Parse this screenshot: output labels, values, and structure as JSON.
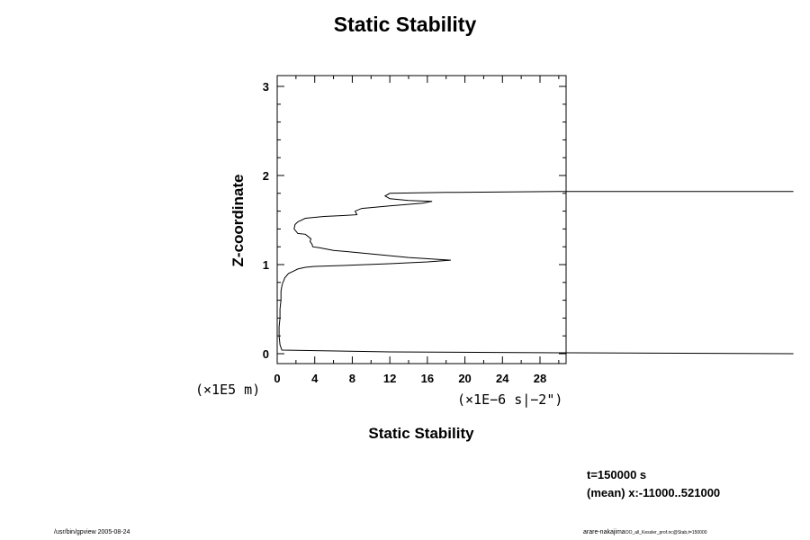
{
  "chart_data": {
    "type": "line",
    "title": "Static Stability",
    "xlabel": "Static Stability",
    "ylabel": "Z-coordinate",
    "x_unit": "(×1E−6 s|−2\")",
    "y_unit": "(×1E5 m)",
    "xlim": [
      0,
      30
    ],
    "ylim": [
      -0.1,
      3.1
    ],
    "x_ticks": [
      0,
      4,
      8,
      12,
      16,
      20,
      24,
      28
    ],
    "y_ticks": [
      0,
      1,
      2,
      3
    ],
    "grid": false,
    "series": [
      {
        "x": [
          55,
          30,
          12,
          0.5,
          0.3,
          0.2,
          0.2,
          0.3,
          0.3,
          0.4,
          0.4,
          0.5,
          0.6,
          0.7,
          0.8,
          1.2,
          1.8,
          2.2,
          3,
          4,
          7,
          12,
          16,
          18.5,
          14,
          10,
          6,
          4.5,
          3.8,
          3.7,
          3.5,
          3.6,
          3.0,
          2.2,
          1.8,
          1.9,
          2.2,
          3,
          5,
          7,
          8.5,
          8.3,
          9,
          12,
          15.5,
          16.5,
          14,
          12,
          11.5,
          12,
          18,
          30,
          55
        ],
        "y": [
          0.0,
          0.01,
          0.02,
          0.04,
          0.1,
          0.2,
          0.3,
          0.4,
          0.5,
          0.6,
          0.7,
          0.76,
          0.8,
          0.82,
          0.85,
          0.9,
          0.93,
          0.95,
          0.97,
          0.98,
          0.99,
          1.01,
          1.03,
          1.05,
          1.08,
          1.12,
          1.16,
          1.19,
          1.2,
          1.23,
          1.26,
          1.29,
          1.34,
          1.35,
          1.4,
          1.45,
          1.48,
          1.52,
          1.54,
          1.55,
          1.56,
          1.6,
          1.63,
          1.66,
          1.69,
          1.71,
          1.72,
          1.74,
          1.77,
          1.8,
          1.81,
          1.82,
          1.82
        ]
      }
    ]
  },
  "annotations": {
    "time": "t=150000 s",
    "mean": "(mean) x:-11000..521000",
    "footer_left": "/usr/bin/gpview 2005-08-24",
    "footer_right_main": "arare-nakajima",
    "footer_right_small": "OO_all_Kessler_prof.nc@Stab,t=150000"
  }
}
